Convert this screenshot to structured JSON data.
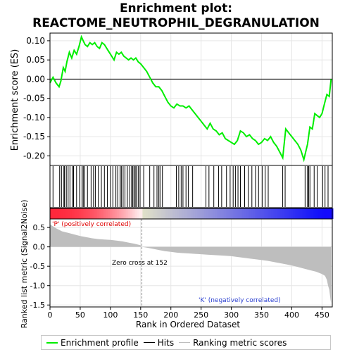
{
  "title_line1": "Enrichment plot:",
  "title_line2": "REACTOME_NEUTROPHIL_DEGRANULATION",
  "colors": {
    "es_line": "#00ee00",
    "hits": "#000000",
    "metric_fill": "#bebebe",
    "grid": "#e6e6e6"
  },
  "legend": {
    "es_label": "Enrichment profile",
    "hits_label": "Hits",
    "metric_label": "Ranking metric scores"
  },
  "annotations": {
    "positive": "'P' (positively correlated)",
    "negative": "'K' (negatively correlated)",
    "zero_cross": "Zero cross at 152"
  },
  "chart_data": {
    "type": "line",
    "xlabel": "Rank in Ordered Dataset",
    "es_panel": {
      "ylabel": "Enrichment score (ES)",
      "ylim": [
        -0.225,
        0.12
      ],
      "yticks": [
        -0.2,
        -0.15,
        -0.1,
        -0.05,
        0.0,
        0.05,
        0.1
      ],
      "ytick_labels": [
        "-0.20",
        "-0.15",
        "-0.10",
        "-0.05",
        "0.00",
        "0.05",
        "0.10"
      ],
      "x": [
        0,
        5,
        10,
        15,
        18,
        22,
        25,
        28,
        32,
        36,
        40,
        44,
        48,
        52,
        55,
        58,
        62,
        66,
        70,
        74,
        78,
        82,
        86,
        90,
        94,
        98,
        102,
        106,
        110,
        114,
        118,
        122,
        126,
        130,
        134,
        138,
        142,
        146,
        150,
        155,
        160,
        165,
        170,
        175,
        180,
        185,
        190,
        195,
        200,
        205,
        210,
        215,
        220,
        225,
        230,
        235,
        240,
        245,
        250,
        255,
        260,
        265,
        270,
        275,
        280,
        285,
        290,
        295,
        300,
        305,
        310,
        315,
        320,
        325,
        330,
        335,
        340,
        345,
        350,
        355,
        360,
        365,
        370,
        375,
        380,
        385,
        390,
        395,
        400,
        405,
        410,
        415,
        420,
        423,
        426,
        430,
        434,
        438,
        442,
        446,
        450,
        454,
        458,
        462,
        465
      ],
      "y": [
        -0.01,
        0.005,
        -0.01,
        -0.02,
        -0.005,
        0.03,
        0.02,
        0.045,
        0.07,
        0.055,
        0.075,
        0.065,
        0.085,
        0.11,
        0.1,
        0.09,
        0.085,
        0.095,
        0.09,
        0.095,
        0.085,
        0.08,
        0.095,
        0.09,
        0.08,
        0.07,
        0.06,
        0.05,
        0.07,
        0.065,
        0.07,
        0.06,
        0.055,
        0.05,
        0.055,
        0.05,
        0.055,
        0.045,
        0.04,
        0.03,
        0.02,
        0.005,
        -0.01,
        -0.02,
        -0.02,
        -0.03,
        -0.045,
        -0.06,
        -0.07,
        -0.075,
        -0.065,
        -0.07,
        -0.07,
        -0.075,
        -0.07,
        -0.08,
        -0.09,
        -0.1,
        -0.11,
        -0.12,
        -0.13,
        -0.115,
        -0.13,
        -0.135,
        -0.145,
        -0.14,
        -0.155,
        -0.16,
        -0.165,
        -0.17,
        -0.16,
        -0.135,
        -0.14,
        -0.15,
        -0.145,
        -0.155,
        -0.16,
        -0.17,
        -0.165,
        -0.155,
        -0.16,
        -0.15,
        -0.165,
        -0.175,
        -0.19,
        -0.205,
        -0.13,
        -0.14,
        -0.15,
        -0.16,
        -0.17,
        -0.185,
        -0.21,
        -0.19,
        -0.17,
        -0.125,
        -0.13,
        -0.09,
        -0.095,
        -0.1,
        -0.09,
        -0.065,
        -0.04,
        -0.045,
        0.0
      ]
    },
    "hits": [
      5,
      16,
      19,
      23,
      24,
      27,
      30,
      33,
      37,
      39,
      44,
      49,
      53,
      55,
      57,
      62,
      68,
      72,
      75,
      80,
      85,
      90,
      95,
      100,
      104,
      109,
      112,
      116,
      118,
      121,
      124,
      128,
      132,
      135,
      137,
      139,
      141,
      143,
      146,
      149,
      155,
      165,
      172,
      177,
      180,
      182,
      186,
      209,
      213,
      217,
      220,
      225,
      229,
      236,
      258,
      263,
      271,
      279,
      284,
      292,
      298,
      303,
      307,
      311,
      315,
      322,
      328,
      334,
      340,
      345,
      351,
      356,
      361,
      385,
      389,
      422,
      426,
      428,
      430,
      437,
      442,
      451,
      455,
      460
    ],
    "heatmap_split": 152,
    "metric_panel": {
      "ylabel": "Ranked list metric (Signal2Noise)",
      "ylim": [
        -1.55,
        0.72
      ],
      "yticks": [
        -1.5,
        -1.0,
        -0.5,
        0.0,
        0.5
      ],
      "ytick_labels": [
        "-1.5",
        "-1.0",
        "-0.5",
        "0.0",
        "0.5"
      ],
      "x": [
        0,
        10,
        20,
        30,
        40,
        50,
        60,
        70,
        80,
        90,
        100,
        110,
        120,
        130,
        140,
        150,
        152,
        160,
        170,
        180,
        190,
        200,
        210,
        220,
        230,
        240,
        250,
        260,
        270,
        280,
        290,
        300,
        310,
        320,
        330,
        340,
        350,
        360,
        370,
        380,
        390,
        400,
        410,
        420,
        430,
        440,
        450,
        455,
        458,
        460,
        462,
        464,
        465
      ],
      "y": [
        0.58,
        0.48,
        0.4,
        0.36,
        0.32,
        0.28,
        0.25,
        0.22,
        0.2,
        0.19,
        0.18,
        0.16,
        0.14,
        0.11,
        0.08,
        0.04,
        0.0,
        -0.02,
        -0.05,
        -0.08,
        -0.11,
        -0.13,
        -0.15,
        -0.16,
        -0.17,
        -0.18,
        -0.19,
        -0.2,
        -0.21,
        -0.22,
        -0.23,
        -0.24,
        -0.26,
        -0.28,
        -0.3,
        -0.32,
        -0.34,
        -0.36,
        -0.39,
        -0.42,
        -0.45,
        -0.48,
        -0.52,
        -0.56,
        -0.6,
        -0.64,
        -0.7,
        -0.75,
        -0.85,
        -1.0,
        -1.1,
        -1.35,
        -1.45
      ]
    },
    "xlim": [
      0,
      467
    ],
    "xticks": [
      0,
      50,
      100,
      150,
      200,
      250,
      300,
      350,
      400,
      450
    ],
    "xtick_labels": [
      "0",
      "50",
      "100",
      "150",
      "200",
      "250",
      "300",
      "350",
      "400",
      "450"
    ]
  }
}
